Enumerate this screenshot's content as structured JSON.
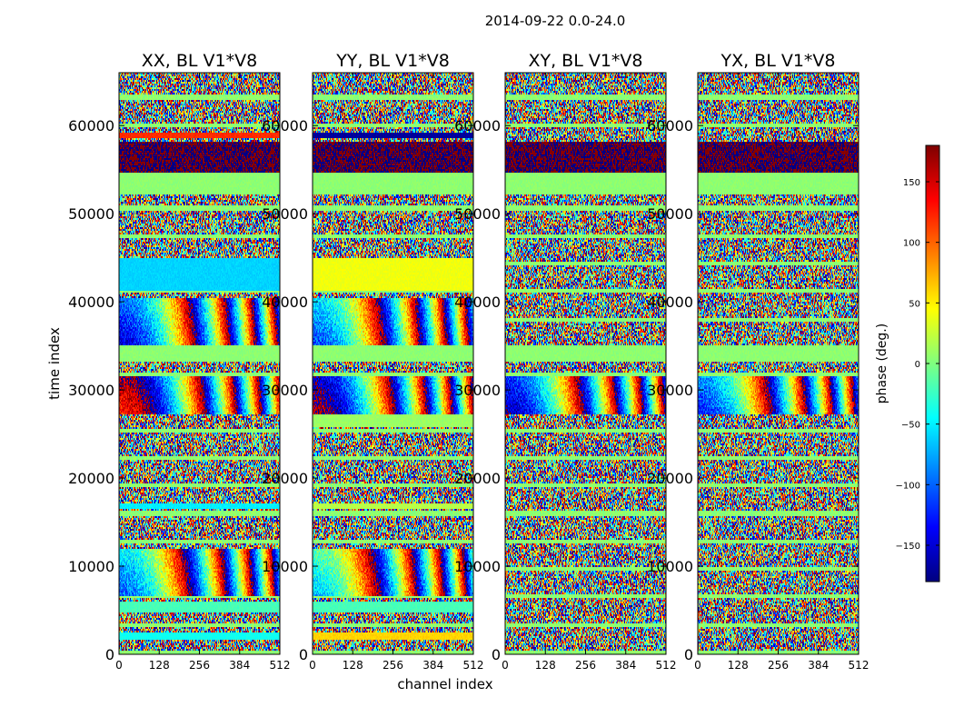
{
  "chart_data": {
    "type": "heatmap",
    "suptitle": "2014-09-22 0.0-24.0",
    "xlabel": "channel index",
    "ylabel": "time index",
    "xlim": [
      0,
      512
    ],
    "ylim": [
      0,
      66000
    ],
    "x_ticks": [
      "0",
      "128",
      "256",
      "384",
      "512"
    ],
    "y_ticks": [
      "0",
      "10000",
      "20000",
      "30000",
      "40000",
      "50000",
      "60000"
    ],
    "panels": [
      {
        "title": "XX, BL V1*V8",
        "key": "xx"
      },
      {
        "title": "YY, BL V1*V8",
        "key": "yy"
      },
      {
        "title": "XY, BL V1*V8",
        "key": "xy"
      },
      {
        "title": "YX, BL V1*V8",
        "key": "yx"
      }
    ],
    "colorbar": {
      "label": "phase (deg.)",
      "range": [
        -180,
        180
      ],
      "ticks": [
        "150",
        "100",
        "50",
        "0",
        "−50",
        "−100",
        "−150"
      ],
      "tick_values": [
        150,
        100,
        50,
        0,
        -50,
        -100,
        -150
      ],
      "colormap": "jet",
      "stop_colors": [
        "#00007f",
        "#0000ff",
        "#007fff",
        "#00ffff",
        "#7fff7f",
        "#ffff00",
        "#ff7f00",
        "#ff0000",
        "#7f0000"
      ]
    },
    "flat_bands": [
      {
        "t0": 54600,
        "t1": 58200,
        "phase": 180,
        "panels": [
          "xx",
          "yy",
          "xy",
          "yx"
        ]
      },
      {
        "t0": 58500,
        "t1": 59200,
        "phase": 120,
        "panels": [
          "xx"
        ]
      },
      {
        "t0": 58500,
        "t1": 59200,
        "phase": -170,
        "panels": [
          "yy"
        ]
      },
      {
        "t0": 52200,
        "t1": 54600,
        "phase": 5,
        "panels": [
          "xx",
          "yy",
          "xy",
          "yx"
        ]
      },
      {
        "t0": 41200,
        "t1": 45000,
        "phase": -60,
        "panels": [
          "xx"
        ]
      },
      {
        "t0": 41200,
        "t1": 45000,
        "phase": 40,
        "panels": [
          "yy"
        ]
      },
      {
        "t0": 33200,
        "t1": 34800,
        "phase": 5,
        "panels": [
          "xx",
          "yy",
          "xy",
          "yx"
        ]
      },
      {
        "t0": 25800,
        "t1": 27200,
        "phase": 10,
        "panels": [
          "yy"
        ]
      },
      {
        "t0": 16600,
        "t1": 17200,
        "phase": -50,
        "panels": [
          "xx"
        ]
      },
      {
        "t0": 16600,
        "t1": 17200,
        "phase": 20,
        "panels": [
          "yy"
        ]
      },
      {
        "t0": 4800,
        "t1": 5900,
        "phase": -20,
        "panels": [
          "xx",
          "yy"
        ]
      },
      {
        "t0": 1600,
        "t1": 2400,
        "phase": -40,
        "panels": [
          "xx"
        ]
      },
      {
        "t0": 1600,
        "t1": 2400,
        "phase": 60,
        "panels": [
          "yy"
        ]
      }
    ],
    "fringe_bands": [
      {
        "t0": 27200,
        "t1": 31500,
        "panels": [
          "xx",
          "yy",
          "xy",
          "yx"
        ]
      },
      {
        "t0": 6500,
        "t1": 12000,
        "panels": [
          "xx",
          "yy"
        ]
      },
      {
        "t0": 35000,
        "t1": 40500,
        "panels": [
          "xx",
          "yy"
        ]
      }
    ]
  }
}
